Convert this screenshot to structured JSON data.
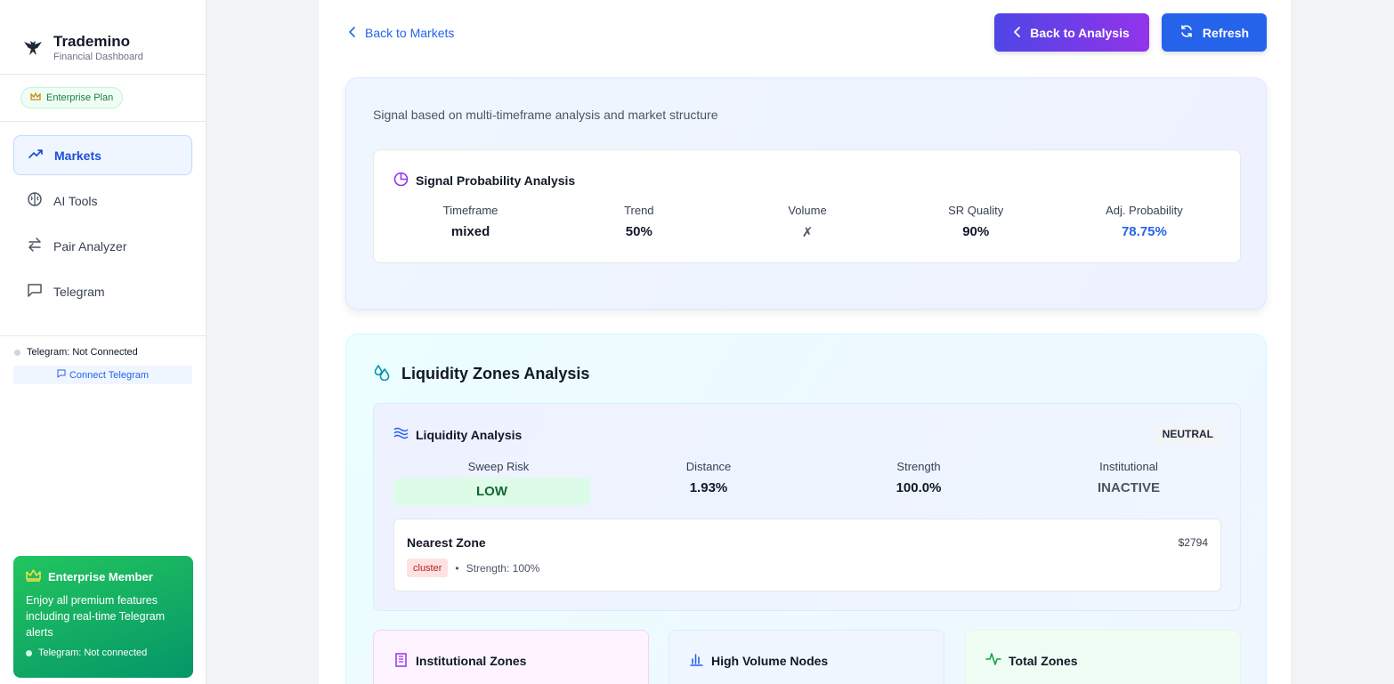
{
  "brand": {
    "name": "Trademino",
    "subtitle": "Financial Dashboard"
  },
  "plan": {
    "label": "Enterprise Plan"
  },
  "nav": [
    {
      "label": "Markets",
      "icon": "trending-up-icon"
    },
    {
      "label": "AI Tools",
      "icon": "brain-icon"
    },
    {
      "label": "Pair Analyzer",
      "icon": "swap-arrows-icon"
    },
    {
      "label": "Telegram",
      "icon": "message-square-icon"
    }
  ],
  "telegram": {
    "status": "Telegram: Not Connected",
    "connect_label": "Connect Telegram"
  },
  "member": {
    "title": "Enterprise Member",
    "description": "Enjoy all premium features including real-time Telegram alerts",
    "status": "Telegram: Not connected"
  },
  "header": {
    "back_link": "Back to Markets",
    "back_analysis": "Back to Analysis",
    "refresh": "Refresh"
  },
  "signal": {
    "description": "Signal based on multi-timeframe analysis and market structure",
    "title": "Signal Probability Analysis",
    "metrics": [
      {
        "label": "Timeframe",
        "value": "mixed"
      },
      {
        "label": "Trend",
        "value": "50%"
      },
      {
        "label": "Volume",
        "value": "✗"
      },
      {
        "label": "SR Quality",
        "value": "90%"
      },
      {
        "label": "Adj. Probability",
        "value": "78.75%"
      }
    ]
  },
  "liquidity": {
    "section_title": "Liquidity Zones Analysis",
    "analysis_title": "Liquidity Analysis",
    "bias": "NEUTRAL",
    "metrics": [
      {
        "label": "Sweep Risk",
        "value": "LOW"
      },
      {
        "label": "Distance",
        "value": "1.93%"
      },
      {
        "label": "Strength",
        "value": "100.0%"
      },
      {
        "label": "Institutional",
        "value": "INACTIVE"
      }
    ],
    "nearest": {
      "title": "Nearest Zone",
      "price": "$2794",
      "type": "cluster",
      "strength": "Strength: 100%"
    },
    "cards": [
      {
        "title": "Institutional Zones",
        "icon": "building-icon"
      },
      {
        "title": "High Volume Nodes",
        "icon": "bar-chart-icon"
      },
      {
        "title": "Total Zones",
        "icon": "activity-icon"
      }
    ]
  },
  "colors": {
    "primary": "#2563eb",
    "accent_purple": "#9333ea",
    "success": "#22c55e"
  }
}
